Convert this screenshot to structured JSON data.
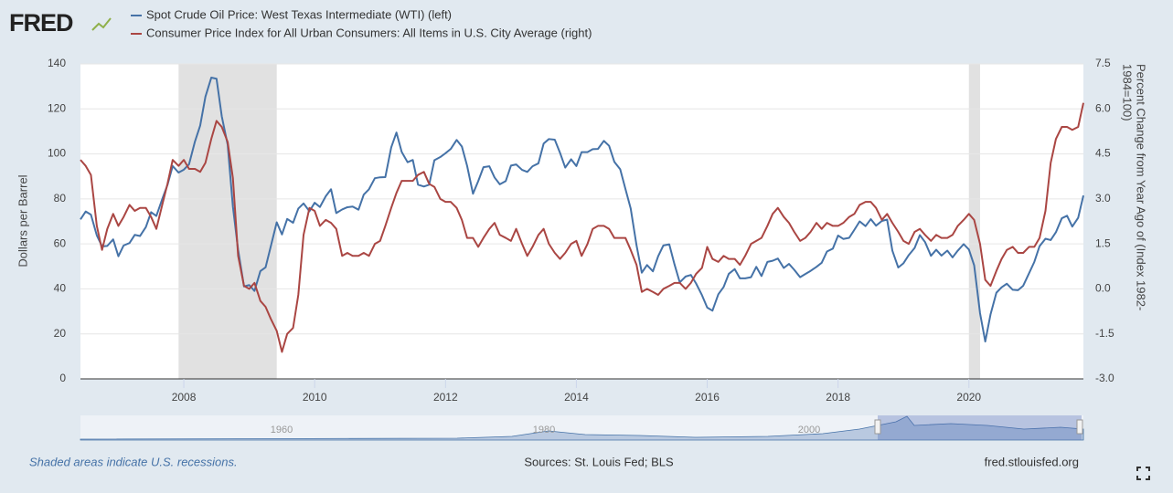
{
  "header": {
    "logo": "FRED"
  },
  "footer": {
    "note": "Shaded areas indicate U.S. recessions.",
    "sources": "Sources: St. Louis Fed; BLS",
    "site": "fred.stlouisfed.org"
  },
  "navigator": {
    "labels": [
      "1960",
      "1980",
      "2000"
    ]
  },
  "chart_data": {
    "type": "line",
    "ylabel": "Dollars per Barrel",
    "y2label_lines": [
      "Percent Change from Year Ago of (Index 1982-",
      "1984=100)"
    ],
    "xlim": [
      2006.42,
      2021.75
    ],
    "xticks": [
      2008,
      2010,
      2012,
      2014,
      2016,
      2018,
      2020
    ],
    "ylim": [
      0,
      140
    ],
    "yticks": [
      0,
      20,
      40,
      60,
      80,
      100,
      120,
      140
    ],
    "y2lim": [
      -3,
      7.5
    ],
    "y2ticks": [
      {
        "value": -3,
        "label": "-3.0"
      },
      -1.5,
      {
        "value": 0,
        "label": "0.0"
      },
      1.5,
      {
        "value": 3,
        "label": "3.0"
      },
      4.5,
      {
        "value": 6,
        "label": "6.0"
      },
      7.5
    ],
    "grid": true,
    "recessions": [
      [
        2007.92,
        2009.42
      ],
      [
        2020.0,
        2020.17
      ]
    ],
    "x": [
      2006.42,
      2006.5,
      2006.58,
      2006.67,
      2006.75,
      2006.83,
      2006.92,
      2007.0,
      2007.08,
      2007.17,
      2007.25,
      2007.33,
      2007.42,
      2007.5,
      2007.58,
      2007.67,
      2007.75,
      2007.83,
      2007.92,
      2008.0,
      2008.08,
      2008.17,
      2008.25,
      2008.33,
      2008.42,
      2008.5,
      2008.58,
      2008.67,
      2008.75,
      2008.83,
      2008.92,
      2009.0,
      2009.08,
      2009.17,
      2009.25,
      2009.33,
      2009.42,
      2009.5,
      2009.58,
      2009.67,
      2009.75,
      2009.83,
      2009.92,
      2010.0,
      2010.08,
      2010.17,
      2010.25,
      2010.33,
      2010.42,
      2010.5,
      2010.58,
      2010.67,
      2010.75,
      2010.83,
      2010.92,
      2011.0,
      2011.08,
      2011.17,
      2011.25,
      2011.33,
      2011.42,
      2011.5,
      2011.58,
      2011.67,
      2011.75,
      2011.83,
      2011.92,
      2012.0,
      2012.08,
      2012.17,
      2012.25,
      2012.33,
      2012.42,
      2012.5,
      2012.58,
      2012.67,
      2012.75,
      2012.83,
      2012.92,
      2013.0,
      2013.08,
      2013.17,
      2013.25,
      2013.33,
      2013.42,
      2013.5,
      2013.58,
      2013.67,
      2013.75,
      2013.83,
      2013.92,
      2014.0,
      2014.08,
      2014.17,
      2014.25,
      2014.33,
      2014.42,
      2014.5,
      2014.58,
      2014.67,
      2014.75,
      2014.83,
      2014.92,
      2015.0,
      2015.08,
      2015.17,
      2015.25,
      2015.33,
      2015.42,
      2015.5,
      2015.58,
      2015.67,
      2015.75,
      2015.83,
      2015.92,
      2016.0,
      2016.08,
      2016.17,
      2016.25,
      2016.33,
      2016.42,
      2016.5,
      2016.58,
      2016.67,
      2016.75,
      2016.83,
      2016.92,
      2017.0,
      2017.08,
      2017.17,
      2017.25,
      2017.33,
      2017.42,
      2017.5,
      2017.58,
      2017.67,
      2017.75,
      2017.83,
      2017.92,
      2018.0,
      2018.08,
      2018.17,
      2018.25,
      2018.33,
      2018.42,
      2018.5,
      2018.58,
      2018.67,
      2018.75,
      2018.83,
      2018.92,
      2019.0,
      2019.08,
      2019.17,
      2019.25,
      2019.33,
      2019.42,
      2019.5,
      2019.58,
      2019.67,
      2019.75,
      2019.83,
      2019.92,
      2020.0,
      2020.08,
      2020.17,
      2020.25,
      2020.33,
      2020.42,
      2020.5,
      2020.58,
      2020.67,
      2020.75,
      2020.83,
      2020.92,
      2021.0,
      2021.08,
      2021.17,
      2021.25,
      2021.33,
      2021.42,
      2021.5,
      2021.58,
      2021.67,
      2021.75
    ],
    "series": [
      {
        "name": "Spot Crude Oil Price: West Texas Intermediate (WTI) (left)",
        "color": "#4572a7",
        "axis": "y",
        "values": [
          70.9,
          74.4,
          73.0,
          63.8,
          58.9,
          59.1,
          62.0,
          54.5,
          59.3,
          60.4,
          64.0,
          63.5,
          67.5,
          74.1,
          72.4,
          79.9,
          86.2,
          94.6,
          91.7,
          93.0,
          95.4,
          105.5,
          112.6,
          125.4,
          133.9,
          133.4,
          116.7,
          104.1,
          76.6,
          57.3,
          41.1,
          41.7,
          39.1,
          47.9,
          49.6,
          59.0,
          69.6,
          64.2,
          71.1,
          69.4,
          75.7,
          78.0,
          74.5,
          78.3,
          76.4,
          81.2,
          84.3,
          73.7,
          75.3,
          76.3,
          76.6,
          75.2,
          81.9,
          84.3,
          89.2,
          89.6,
          89.7,
          102.9,
          109.5,
          100.9,
          96.3,
          97.3,
          86.3,
          85.5,
          86.3,
          97.2,
          98.6,
          100.3,
          102.2,
          106.2,
          103.3,
          94.7,
          82.3,
          87.9,
          94.1,
          94.5,
          89.5,
          86.5,
          87.9,
          94.8,
          95.3,
          92.9,
          92.0,
          94.5,
          95.8,
          104.6,
          106.6,
          106.3,
          100.5,
          93.9,
          97.6,
          94.6,
          100.8,
          100.8,
          102.1,
          102.2,
          105.8,
          103.6,
          96.5,
          93.2,
          84.4,
          75.8,
          59.3,
          47.2,
          50.6,
          47.8,
          54.5,
          59.3,
          59.8,
          50.9,
          42.9,
          45.5,
          46.2,
          42.4,
          37.2,
          31.7,
          30.3,
          37.6,
          40.8,
          46.7,
          48.8,
          44.7,
          44.7,
          45.2,
          49.8,
          45.7,
          52.0,
          52.5,
          53.5,
          49.3,
          51.1,
          48.5,
          45.2,
          46.6,
          48.0,
          49.8,
          51.6,
          56.6,
          57.9,
          63.7,
          62.2,
          62.7,
          66.3,
          70.0,
          67.9,
          71.0,
          68.1,
          70.2,
          70.8,
          57.0,
          49.5,
          51.4,
          55.0,
          58.2,
          63.9,
          60.8,
          54.7,
          57.4,
          54.8,
          57.0,
          54.0,
          57.0,
          59.9,
          57.5,
          50.5,
          29.2,
          16.6,
          28.6,
          38.3,
          40.7,
          42.3,
          39.6,
          39.4,
          41.4,
          47.0,
          52.0,
          59.0,
          62.3,
          61.7,
          65.2,
          71.4,
          72.5,
          67.7,
          71.6,
          81.5
        ]
      },
      {
        "name": "Consumer Price Index for All Urban Consumers: All Items in U.S. City Average (right)",
        "color": "#aa4643",
        "axis": "y2",
        "values": [
          4.3,
          4.1,
          3.8,
          2.1,
          1.3,
          2.0,
          2.5,
          2.1,
          2.4,
          2.8,
          2.6,
          2.7,
          2.7,
          2.4,
          2.0,
          2.8,
          3.5,
          4.3,
          4.1,
          4.3,
          4.0,
          4.0,
          3.9,
          4.2,
          5.0,
          5.6,
          5.4,
          4.9,
          3.7,
          1.1,
          0.1,
          0.0,
          0.2,
          -0.4,
          -0.6,
          -1.0,
          -1.4,
          -2.1,
          -1.5,
          -1.3,
          -0.2,
          1.8,
          2.7,
          2.6,
          2.1,
          2.3,
          2.2,
          2.0,
          1.1,
          1.2,
          1.1,
          1.1,
          1.2,
          1.1,
          1.5,
          1.6,
          2.1,
          2.7,
          3.2,
          3.6,
          3.6,
          3.6,
          3.8,
          3.9,
          3.5,
          3.4,
          3.0,
          2.9,
          2.9,
          2.7,
          2.3,
          1.7,
          1.7,
          1.4,
          1.7,
          2.0,
          2.2,
          1.8,
          1.7,
          1.6,
          2.0,
          1.5,
          1.1,
          1.4,
          1.8,
          2.0,
          1.5,
          1.2,
          1.0,
          1.2,
          1.5,
          1.6,
          1.1,
          1.5,
          2.0,
          2.1,
          2.1,
          2.0,
          1.7,
          1.7,
          1.7,
          1.3,
          0.8,
          -0.1,
          0.0,
          -0.1,
          -0.2,
          0.0,
          0.1,
          0.2,
          0.2,
          0.0,
          0.2,
          0.5,
          0.7,
          1.4,
          1.0,
          0.9,
          1.1,
          1.0,
          1.0,
          0.8,
          1.1,
          1.5,
          1.6,
          1.7,
          2.1,
          2.5,
          2.7,
          2.4,
          2.2,
          1.9,
          1.6,
          1.7,
          1.9,
          2.2,
          2.0,
          2.2,
          2.1,
          2.1,
          2.2,
          2.4,
          2.5,
          2.8,
          2.9,
          2.9,
          2.7,
          2.3,
          2.5,
          2.2,
          1.9,
          1.6,
          1.5,
          1.9,
          2.0,
          1.8,
          1.6,
          1.8,
          1.7,
          1.7,
          1.8,
          2.1,
          2.3,
          2.5,
          2.3,
          1.5,
          0.3,
          0.1,
          0.6,
          1.0,
          1.3,
          1.4,
          1.2,
          1.2,
          1.4,
          1.4,
          1.7,
          2.6,
          4.2,
          5.0,
          5.4,
          5.4,
          5.3,
          5.4,
          6.2
        ]
      }
    ]
  }
}
